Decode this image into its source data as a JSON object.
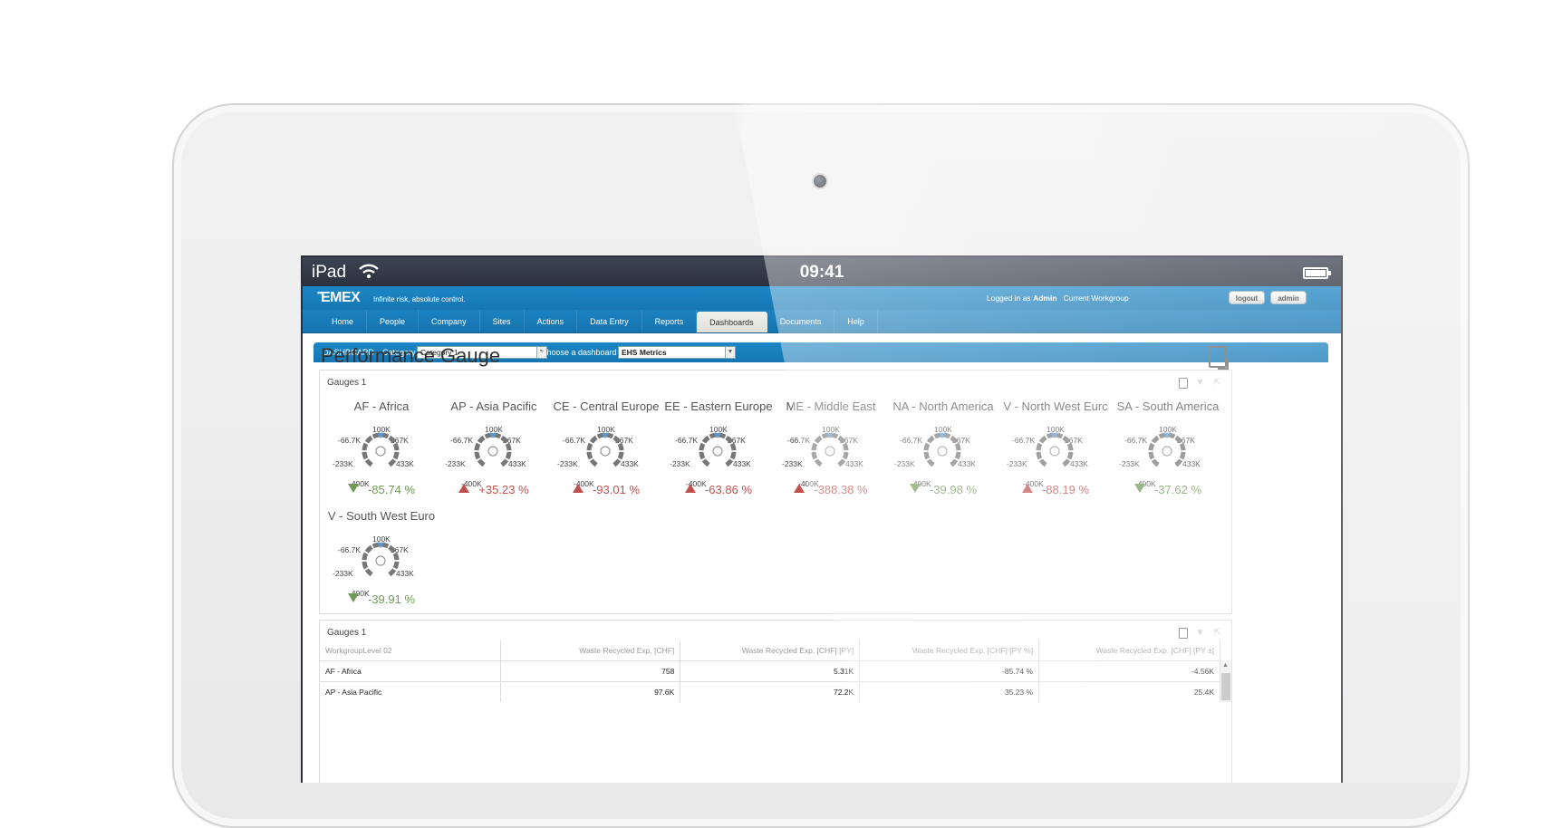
{
  "status_bar": {
    "device": "iPad",
    "time": "09:41"
  },
  "app": {
    "logo": "EMEX",
    "tagline": "Infinite risk, absolute control.",
    "logged_in_prefix": "Logged in as",
    "user": "Admin",
    "workgroup": "Current Workgroup",
    "logout_label": "logout",
    "admin_label": "admin",
    "accent": "#1a80c0"
  },
  "nav": {
    "tabs": [
      {
        "label": "Home"
      },
      {
        "label": "People"
      },
      {
        "label": "Company"
      },
      {
        "label": "Sites"
      },
      {
        "label": "Actions"
      },
      {
        "label": "Data Entry"
      },
      {
        "label": "Reports"
      },
      {
        "label": "Dashboards",
        "active": true
      },
      {
        "label": "Documents"
      },
      {
        "label": "Help"
      }
    ]
  },
  "dashboard_bar": {
    "label": "DASHBOARD",
    "category_label": "Category",
    "category_value": "Category 1",
    "choose_label": "Choose a dashboard",
    "dashboard_value": "EHS Metrics"
  },
  "page_title": "Performance Gauge",
  "gauges_panel": {
    "title": "Gauges 1",
    "ticks": {
      "top": "100K",
      "upper_left": "-66.7K",
      "upper_right": "267K",
      "left": "-233K",
      "right": "433K",
      "bottom": "-400K"
    },
    "gauges": [
      {
        "name": "AF - Africa",
        "value": "-85.74 %",
        "trend": "down"
      },
      {
        "name": "AP - Asia Pacific",
        "value": "+35.23 %",
        "trend": "up"
      },
      {
        "name": "CE - Central Europe",
        "value": "-93.01 %",
        "trend": "up"
      },
      {
        "name": "EE - Eastern Europe",
        "value": "-63.86 %",
        "trend": "up"
      },
      {
        "name": "ME - Middle East",
        "value": "-388.38 %",
        "trend": "up"
      },
      {
        "name": "NA - North America",
        "value": "-39.98 %",
        "trend": "down"
      },
      {
        "name": "V - North West Eurc",
        "value": "-88.19 %",
        "trend": "up"
      },
      {
        "name": "SA - South America",
        "value": "-37.62 %",
        "trend": "down"
      },
      {
        "name": "V - South West Euro",
        "value": "-39.91 %",
        "trend": "down"
      }
    ]
  },
  "table_panel": {
    "title": "Gauges 1",
    "columns": [
      "WorkgroupLevel 02",
      "Waste Recycled Exp. [CHF]",
      "Waste Recycled Exp. [CHF] [PY]",
      "Waste Recycled Exp. [CHF] [PY %]",
      "Waste Recycled Exp. [CHF] [PY ±]"
    ],
    "rows": [
      [
        "AF - Africa",
        "758",
        "5.31K",
        "-85.74 %",
        "-4.56K"
      ],
      [
        "AP - Asia Pacific",
        "97.6K",
        "72.2K",
        "35.23 %",
        "25.4K"
      ]
    ]
  }
}
